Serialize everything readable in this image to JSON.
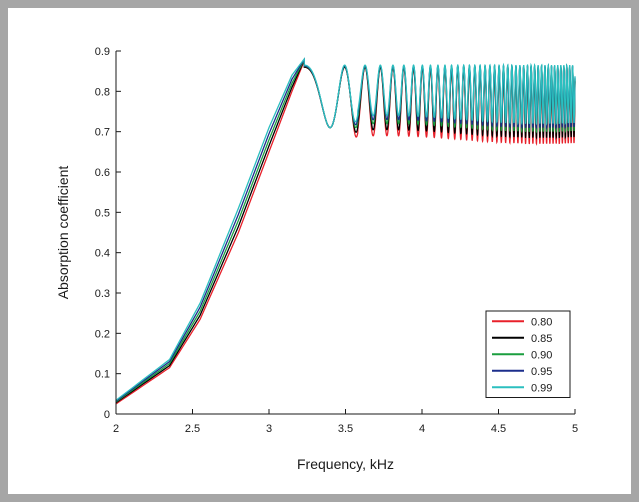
{
  "chart_data": {
    "type": "line",
    "title": "",
    "xlabel": "Frequency, kHz",
    "ylabel": "Absorption coefficient",
    "xlim": [
      2,
      5
    ],
    "ylim": [
      0,
      0.9
    ],
    "x_ticks": [
      "2",
      "2.5",
      "3",
      "3.5",
      "4",
      "4.5",
      "5"
    ],
    "y_ticks": [
      "0",
      "0.1",
      "0.2",
      "0.3",
      "0.4",
      "0.5",
      "0.6",
      "0.7",
      "0.8",
      "0.9"
    ],
    "grid": false,
    "legend_position": "bottom-right",
    "series": [
      {
        "name": "0.80",
        "color": "#e8202a",
        "envelope": {
          "x": [
            2,
            2.35,
            2.55,
            2.8,
            3.0,
            3.15,
            3.23
          ],
          "y": [
            0.025,
            0.115,
            0.235,
            0.45,
            0.65,
            0.8,
            0.875
          ]
        },
        "oscillation_floor": 0.68,
        "oscillation_ceiling": 0.86
      },
      {
        "name": "0.85",
        "color": "#000000",
        "envelope": {
          "x": [
            2,
            2.35,
            2.55,
            2.8,
            3.0,
            3.15,
            3.23
          ],
          "y": [
            0.028,
            0.12,
            0.245,
            0.465,
            0.665,
            0.81,
            0.877
          ]
        },
        "oscillation_floor": 0.695,
        "oscillation_ceiling": 0.86
      },
      {
        "name": "0.90",
        "color": "#1a9e3f",
        "envelope": {
          "x": [
            2,
            2.35,
            2.55,
            2.8,
            3.0,
            3.15,
            3.23
          ],
          "y": [
            0.03,
            0.125,
            0.255,
            0.48,
            0.68,
            0.82,
            0.878
          ]
        },
        "oscillation_floor": 0.71,
        "oscillation_ceiling": 0.862
      },
      {
        "name": "0.95",
        "color": "#1c2e8c",
        "envelope": {
          "x": [
            2,
            2.35,
            2.55,
            2.8,
            3.0,
            3.15,
            3.23
          ],
          "y": [
            0.032,
            0.13,
            0.265,
            0.495,
            0.695,
            0.83,
            0.879
          ]
        },
        "oscillation_floor": 0.72,
        "oscillation_ceiling": 0.863
      },
      {
        "name": "0.99",
        "color": "#2bbfbf",
        "envelope": {
          "x": [
            2,
            2.35,
            2.55,
            2.8,
            3.0,
            3.15,
            3.23
          ],
          "y": [
            0.034,
            0.135,
            0.275,
            0.51,
            0.71,
            0.84,
            0.88
          ]
        },
        "oscillation_floor": 0.73,
        "oscillation_ceiling": 0.865
      }
    ]
  }
}
